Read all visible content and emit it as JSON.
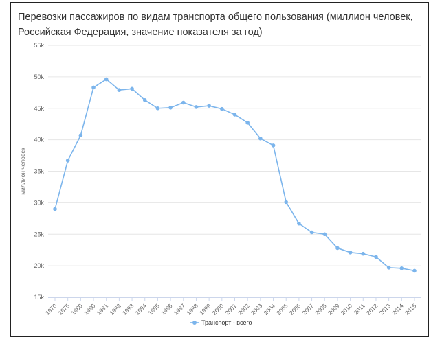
{
  "chart_data": {
    "type": "line",
    "title": "Перевозки пассажиров по видам транспорта общего пользования (миллион человек, Российская Федерация, значение показателя за год)",
    "ylabel": "миллион человек",
    "xlabel": "",
    "ylim": [
      15000,
      55000
    ],
    "y_ticks": [
      "15k",
      "20k",
      "25k",
      "30k",
      "35k",
      "40k",
      "45k",
      "50k",
      "55k"
    ],
    "y_tick_values": [
      15000,
      20000,
      25000,
      30000,
      35000,
      40000,
      45000,
      50000,
      55000
    ],
    "categories": [
      "1970",
      "1975",
      "1980",
      "1990",
      "1991",
      "1992",
      "1993",
      "1994",
      "1995",
      "1996",
      "1997",
      "1998",
      "1999",
      "2000",
      "2001",
      "2002",
      "2003",
      "2004",
      "2005",
      "2006",
      "2007",
      "2008",
      "2009",
      "2010",
      "2011",
      "2012",
      "2013",
      "2014",
      "2015"
    ],
    "series": [
      {
        "name": "Транспорт - всего",
        "color": "#7cb5ec",
        "values": [
          29000,
          36700,
          40700,
          48300,
          49600,
          47900,
          48100,
          46300,
          45000,
          45100,
          45900,
          45200,
          45400,
          44900,
          44000,
          42700,
          40200,
          39100,
          30100,
          26700,
          25300,
          25000,
          22800,
          22100,
          21900,
          21400,
          19700,
          19600,
          19200
        ]
      }
    ],
    "grid": true,
    "legend": "bottom-center"
  }
}
